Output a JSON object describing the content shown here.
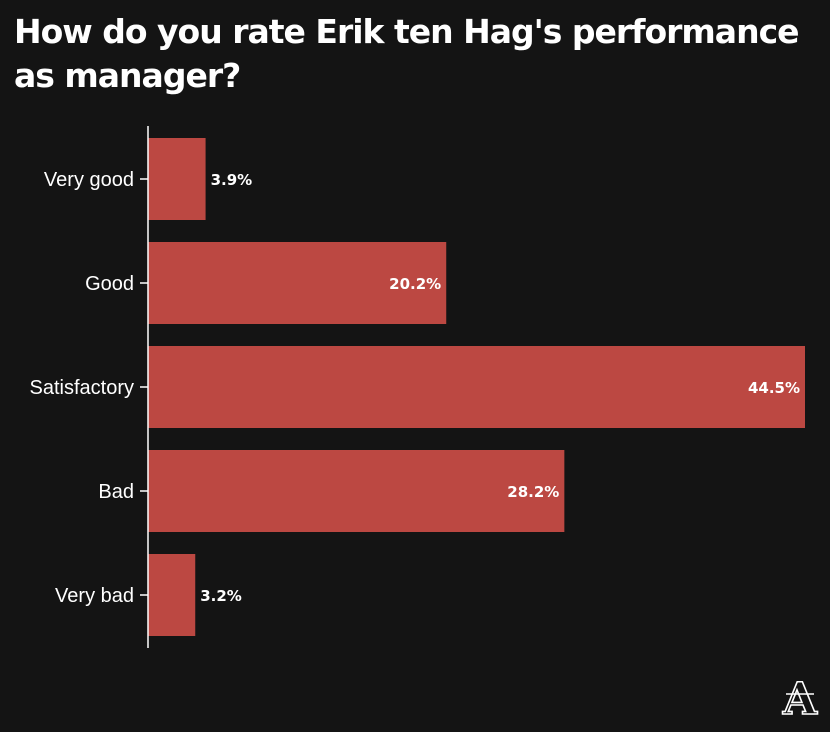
{
  "colors": {
    "background": "#141414",
    "bar": "#bc4842",
    "text": "#ffffff"
  },
  "logo": {
    "icon": "the-athletic-logo-icon",
    "letter": "A"
  },
  "chart_data": {
    "type": "bar",
    "orientation": "horizontal",
    "title": "How do you rate Erik ten Hag's performance as manager?",
    "categories": [
      "Very good",
      "Good",
      "Satisfactory",
      "Bad",
      "Very bad"
    ],
    "values": [
      3.9,
      20.2,
      44.5,
      28.2,
      3.2
    ],
    "value_labels": [
      "3.9%",
      "20.2%",
      "44.5%",
      "28.2%",
      "3.2%"
    ],
    "xlim": [
      0,
      44.5
    ],
    "grid": false,
    "legend": "none"
  }
}
